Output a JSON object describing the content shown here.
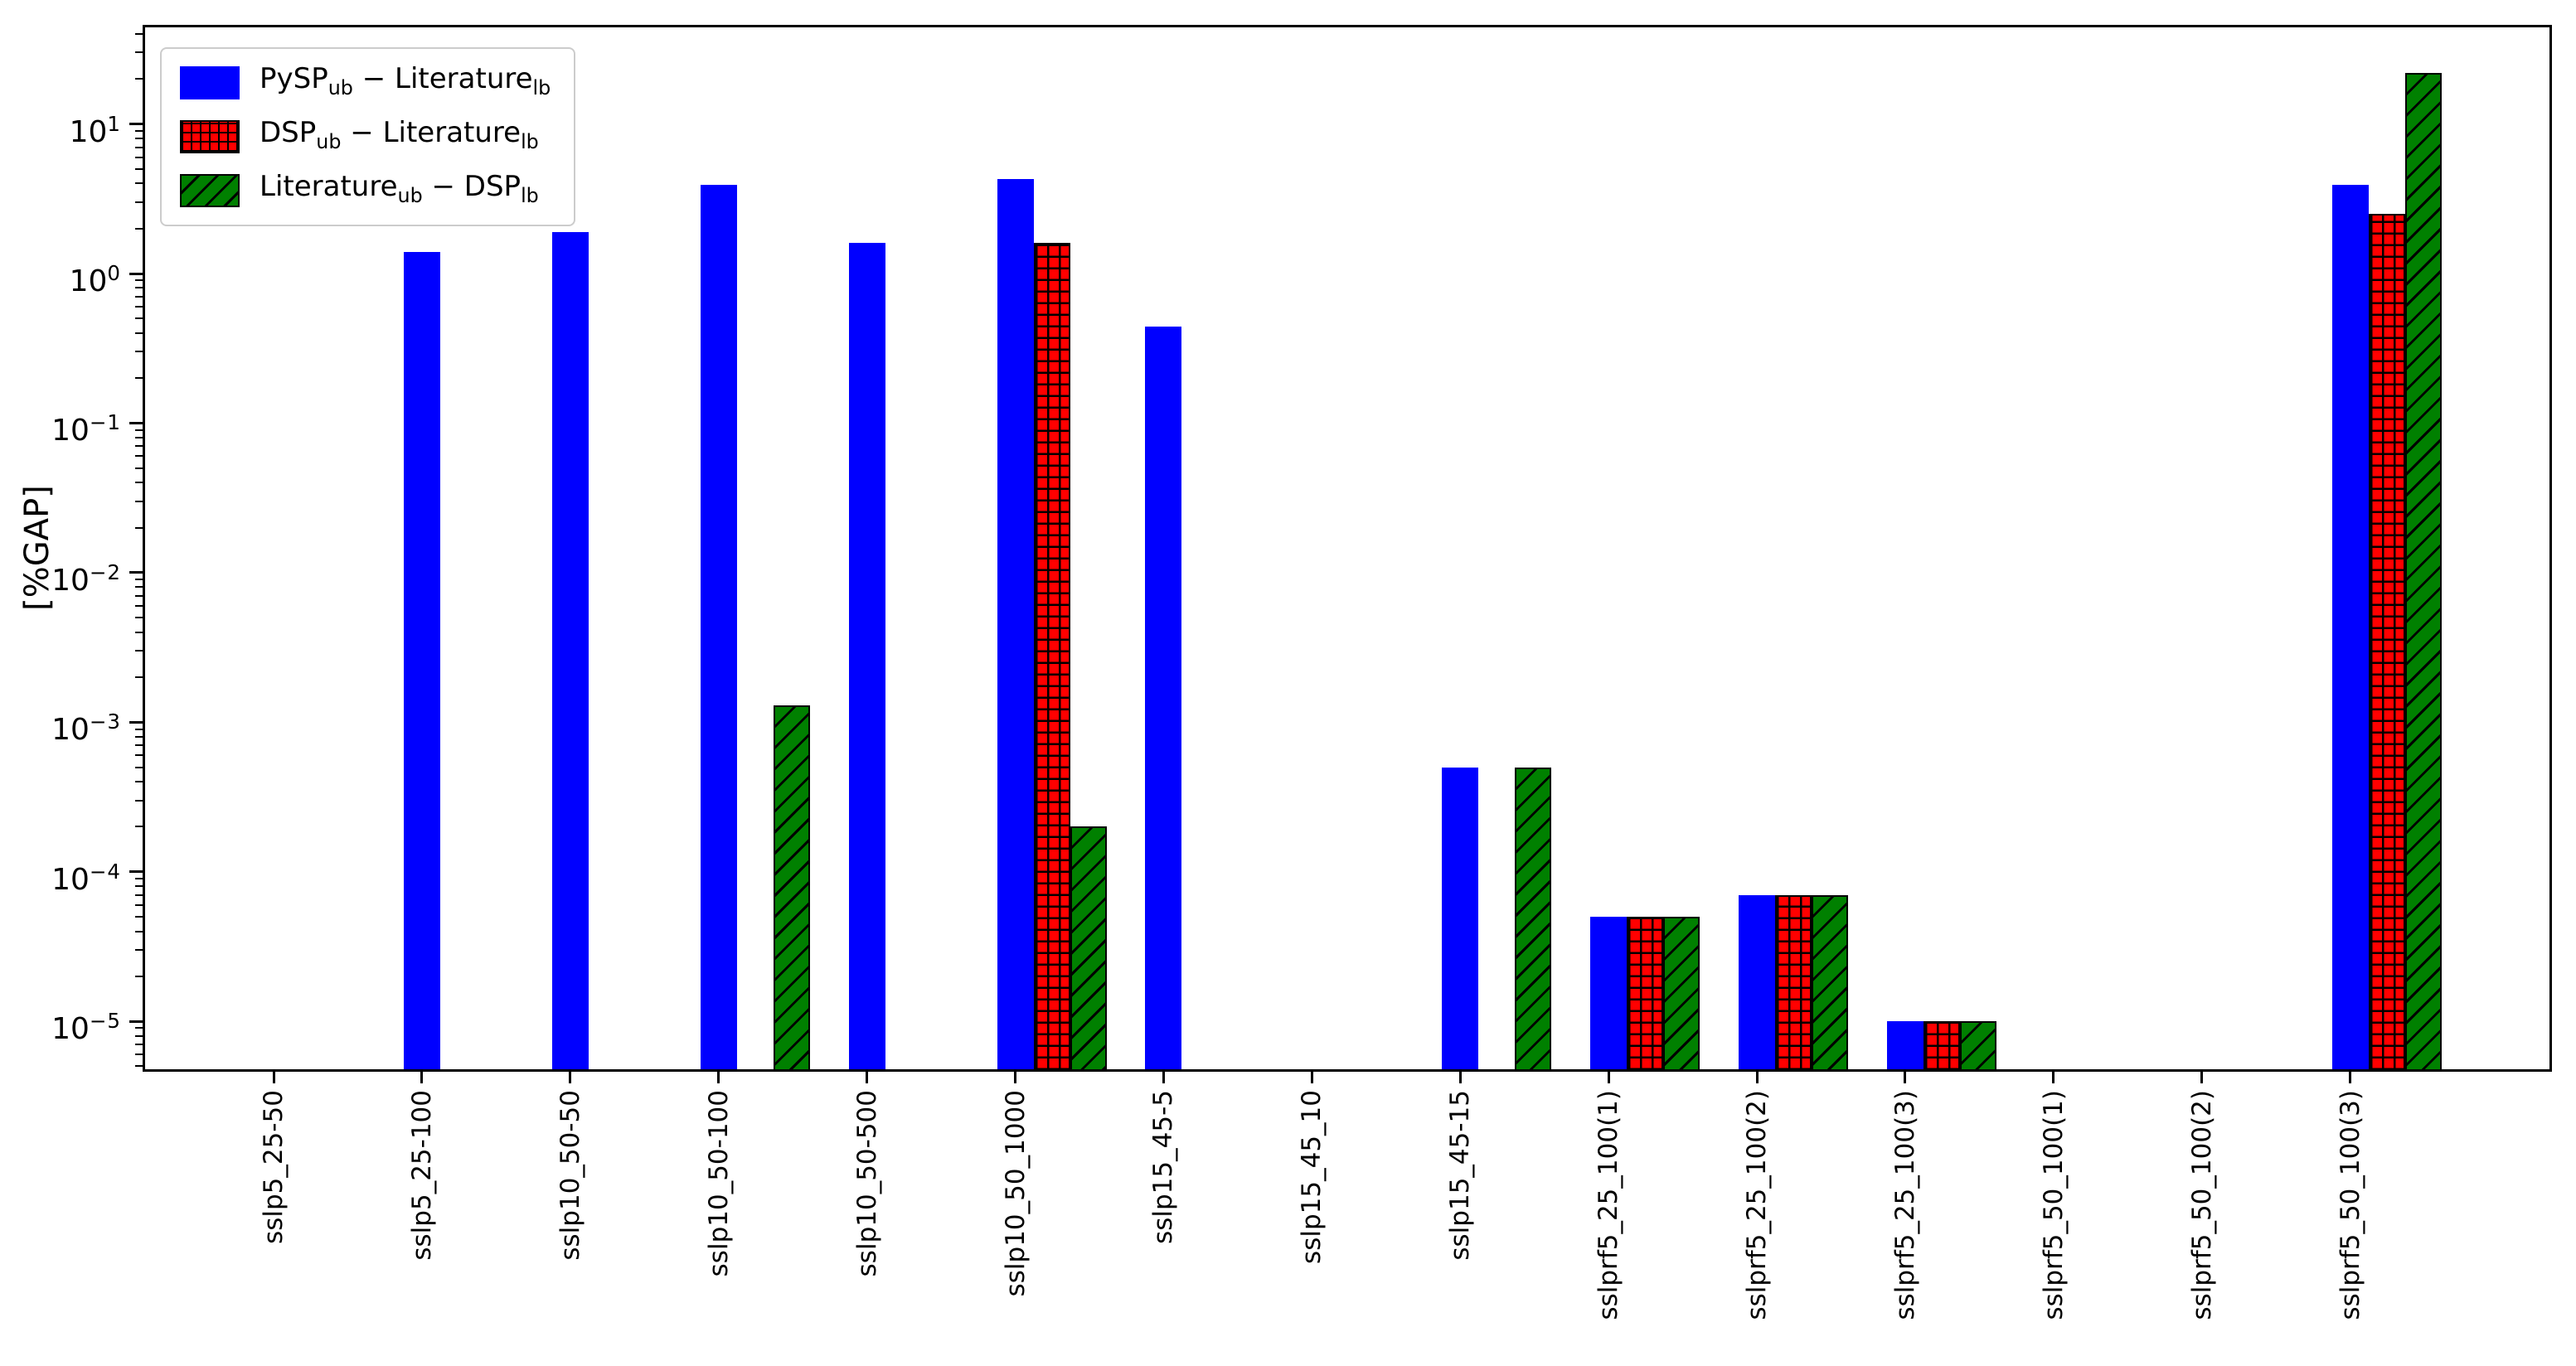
{
  "y_axis": {
    "label": "[%GAP]",
    "scale": "log",
    "min": 4.6e-06,
    "max": 46,
    "ticks": [
      {
        "base": "10",
        "sup": "1",
        "value": 10
      },
      {
        "base": "10",
        "sup": "0",
        "value": 1
      },
      {
        "base": "10",
        "sup": "−1",
        "value": 0.1
      },
      {
        "base": "10",
        "sup": "−2",
        "value": 0.01
      },
      {
        "base": "10",
        "sup": "−3",
        "value": 0.001
      },
      {
        "base": "10",
        "sup": "−4",
        "value": 0.0001
      },
      {
        "base": "10",
        "sup": "−5",
        "value": 1e-05
      }
    ]
  },
  "legend": {
    "items": [
      {
        "swatch": "blue-solid",
        "parts": [
          {
            "text": "PySP"
          },
          {
            "sub": "ub"
          },
          {
            "text": " − "
          },
          {
            "text": "Literature"
          },
          {
            "sub": "lb"
          }
        ]
      },
      {
        "swatch": "red-plus",
        "parts": [
          {
            "text": "DSP"
          },
          {
            "sub": "ub"
          },
          {
            "text": " − "
          },
          {
            "text": "Literature"
          },
          {
            "sub": "lb"
          }
        ]
      },
      {
        "swatch": "green-slash",
        "parts": [
          {
            "text": "Literature"
          },
          {
            "sub": "ub"
          },
          {
            "text": " − "
          },
          {
            "text": "DSP"
          },
          {
            "sub": "lb"
          }
        ]
      }
    ]
  },
  "chart_data": {
    "type": "bar",
    "yscale": "log",
    "ylabel": "[%GAP]",
    "ylim": [
      4.6e-06,
      46
    ],
    "grid": false,
    "legend_position": "upper left",
    "categories": [
      "sslp5_25-50",
      "sslp5_25-100",
      "sslp10_50-50",
      "sslp10_50-100",
      "sslp10_50-500",
      "sslp10_50_1000",
      "sslp15_45-5",
      "sslp15_45_10",
      "sslp15_45-15",
      "sslprf5_25_100(1)",
      "sslprf5_25_100(2)",
      "sslprf5_25_100(3)",
      "sslprf5_50_100(1)",
      "sslprf5_50_100(2)",
      "sslprf5_50_100(3)"
    ],
    "series": [
      {
        "name": "PySP_ub − Literature_lb",
        "color": "#0000ff",
        "hatch": "none",
        "values": [
          0,
          1.4,
          1.9,
          3.9,
          1.6,
          4.3,
          0.44,
          0,
          0.0005,
          5e-05,
          7e-05,
          1e-05,
          0,
          0,
          3.9
        ]
      },
      {
        "name": "DSP_ub − Literature_lb",
        "color": "#ff0000",
        "hatch": "++",
        "values": [
          0,
          0,
          0,
          0,
          0,
          1.6,
          0,
          0,
          0,
          5e-05,
          7e-05,
          1e-05,
          0,
          0,
          2.5
        ]
      },
      {
        "name": "Literature_ub − DSP_lb",
        "color": "#008000",
        "hatch": "//",
        "values": [
          0,
          0,
          0,
          0.0013,
          0,
          0.0002,
          0,
          0,
          0.0005,
          5e-05,
          7e-05,
          1e-05,
          0,
          0,
          22
        ]
      }
    ]
  },
  "colors": {
    "blue_series": "#0000ff",
    "red_series": "#ff0000",
    "green_series": "#008000",
    "hatch": "#000000",
    "legend_border": "#cccccc",
    "axis": "#000000"
  }
}
